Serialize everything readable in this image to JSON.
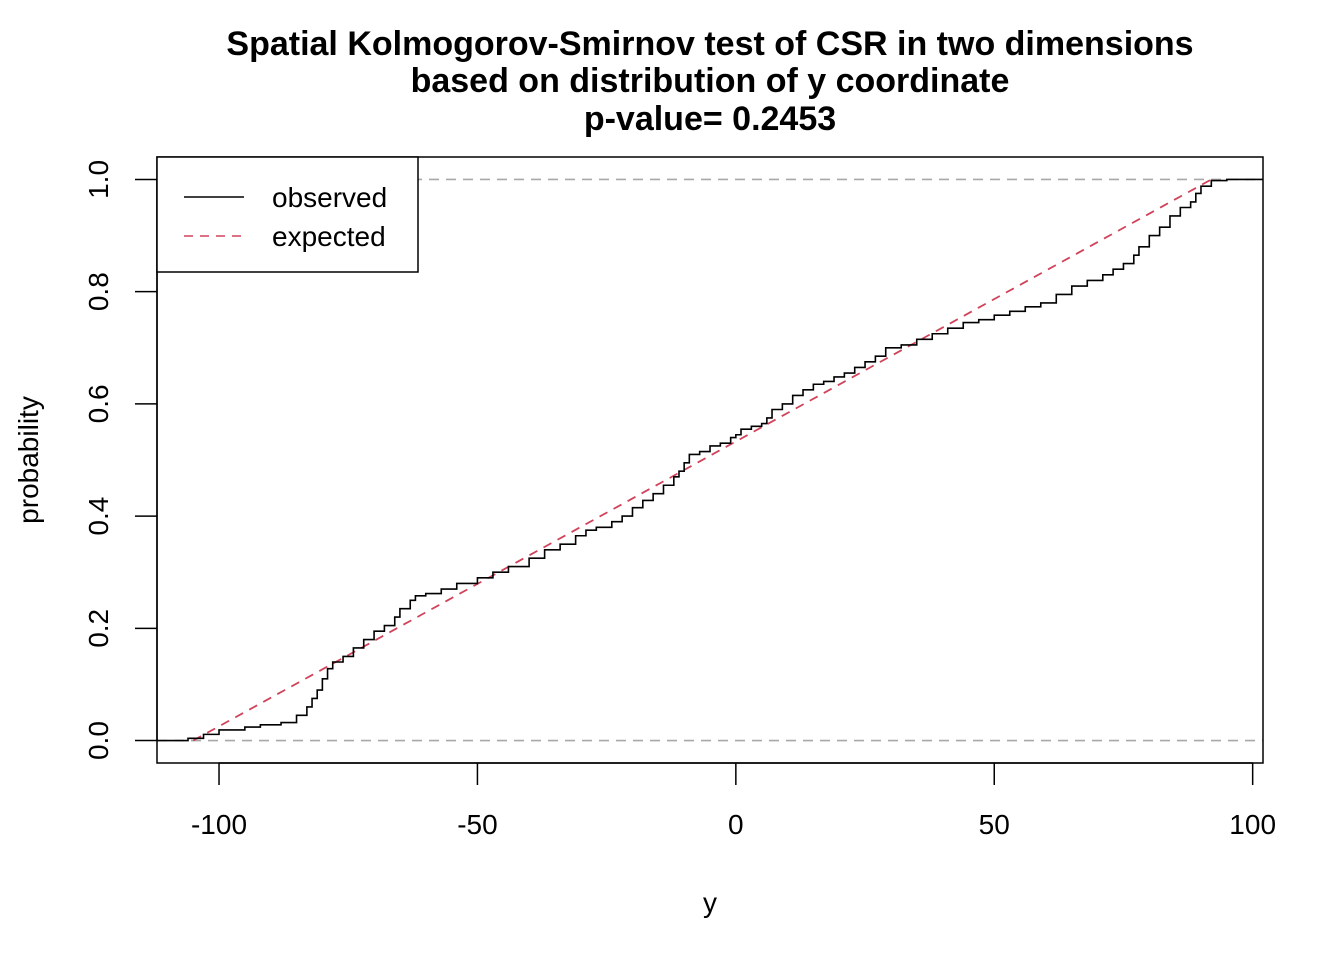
{
  "chart_data": {
    "type": "line",
    "title": [
      "Spatial Kolmogorov-Smirnov test of CSR in two dimensions",
      "based on distribution of y coordinate",
      "p-value= 0.2453"
    ],
    "xlabel": "y",
    "ylabel": "probability",
    "xlim": [
      -112,
      102
    ],
    "ylim": [
      -0.04,
      1.04
    ],
    "x_ticks": [
      -100,
      -50,
      0,
      50,
      100
    ],
    "x_tick_labels": [
      "-100",
      "-50",
      "0",
      "50",
      "100"
    ],
    "y_ticks": [
      0.0,
      0.2,
      0.4,
      0.6,
      0.8,
      1.0
    ],
    "y_tick_labels": [
      "0.0",
      "0.2",
      "0.4",
      "0.6",
      "0.8",
      "1.0"
    ],
    "reference_lines": [
      0.0,
      1.0
    ],
    "legend": {
      "position": "top-left",
      "entries": [
        "observed",
        "expected"
      ]
    },
    "colors": {
      "observed": "#000000",
      "expected": "#d0435a",
      "reference": "#a8a8a8"
    },
    "series": [
      {
        "name": "observed",
        "style": "step",
        "x": [
          -112,
          -106,
          -103,
          -100,
          -95,
          -92,
          -88,
          -85,
          -83,
          -82,
          -81,
          -80,
          -79,
          -78,
          -76,
          -74,
          -72,
          -70,
          -68,
          -66,
          -65,
          -63,
          -62,
          -60,
          -57,
          -54,
          -50,
          -47,
          -44,
          -40,
          -37,
          -34,
          -31,
          -29,
          -27,
          -24,
          -22,
          -20,
          -18,
          -16,
          -14,
          -12,
          -11,
          -10,
          -9,
          -7,
          -5,
          -3,
          -1,
          0,
          1,
          3,
          5,
          6,
          7,
          9,
          11,
          13,
          15,
          17,
          19,
          21,
          23,
          25,
          27,
          29,
          32,
          35,
          38,
          41,
          44,
          47,
          50,
          53,
          56,
          59,
          62,
          65,
          68,
          71,
          73,
          75,
          77,
          78,
          80,
          82,
          84,
          86,
          88,
          89,
          90,
          92,
          95,
          98,
          102
        ],
        "y": [
          0.0,
          0.004,
          0.011,
          0.019,
          0.024,
          0.028,
          0.032,
          0.045,
          0.06,
          0.075,
          0.09,
          0.11,
          0.128,
          0.14,
          0.15,
          0.165,
          0.18,
          0.195,
          0.205,
          0.22,
          0.235,
          0.25,
          0.258,
          0.262,
          0.27,
          0.28,
          0.29,
          0.3,
          0.31,
          0.325,
          0.34,
          0.35,
          0.365,
          0.375,
          0.38,
          0.39,
          0.4,
          0.415,
          0.428,
          0.44,
          0.455,
          0.47,
          0.48,
          0.495,
          0.51,
          0.515,
          0.525,
          0.53,
          0.54,
          0.545,
          0.555,
          0.56,
          0.565,
          0.575,
          0.59,
          0.6,
          0.615,
          0.625,
          0.635,
          0.64,
          0.648,
          0.655,
          0.665,
          0.675,
          0.685,
          0.7,
          0.705,
          0.715,
          0.725,
          0.735,
          0.745,
          0.75,
          0.758,
          0.765,
          0.773,
          0.78,
          0.795,
          0.81,
          0.82,
          0.83,
          0.84,
          0.85,
          0.865,
          0.88,
          0.9,
          0.915,
          0.935,
          0.95,
          0.96,
          0.975,
          0.988,
          0.998,
          1.0,
          1.0,
          1.0
        ]
      },
      {
        "name": "expected",
        "style": "dashed",
        "x": [
          -105,
          92
        ],
        "y": [
          0.0,
          1.0
        ]
      }
    ]
  }
}
